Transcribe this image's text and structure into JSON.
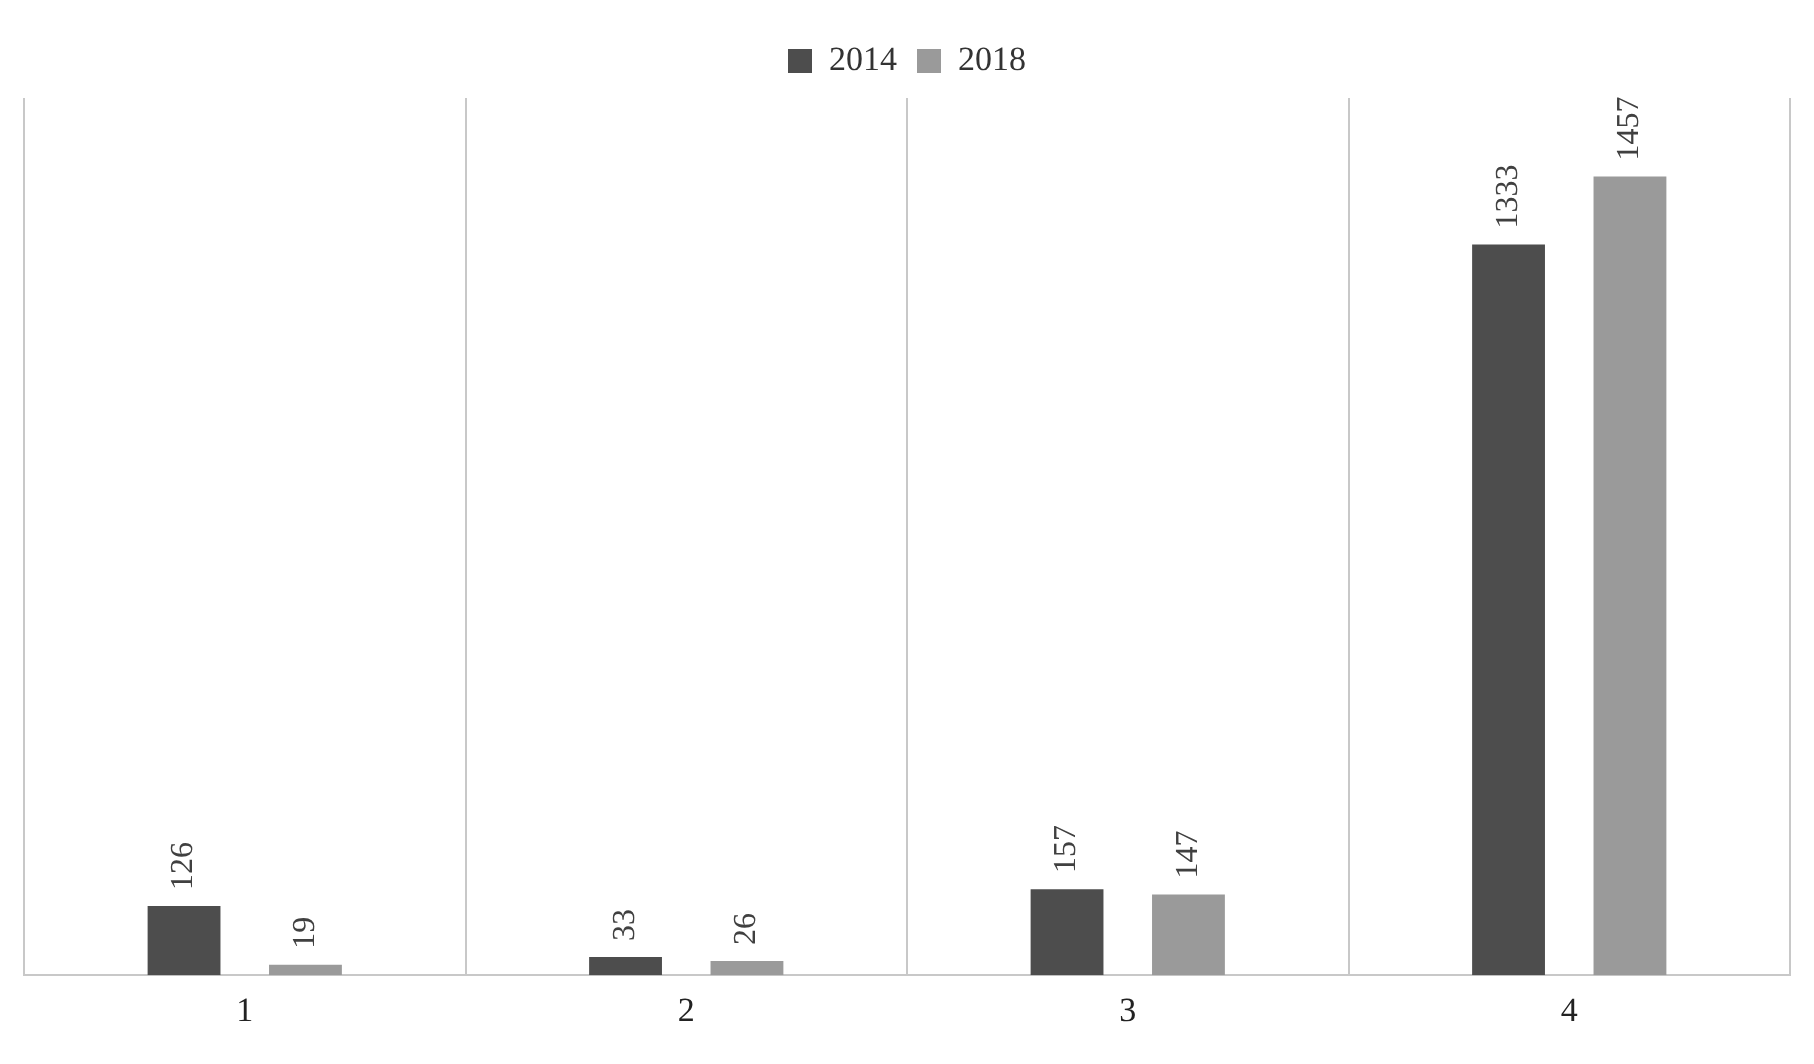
{
  "chart_data": {
    "type": "bar",
    "categories": [
      "1",
      "2",
      "3",
      "4"
    ],
    "series": [
      {
        "name": "2014",
        "color": "#4d4d4d",
        "values": [
          126,
          33,
          157,
          1333
        ]
      },
      {
        "name": "2018",
        "color": "#9a9a9a",
        "values": [
          19,
          26,
          147,
          1457
        ]
      }
    ],
    "data_labels": true,
    "grid": "x",
    "legend": "top"
  }
}
